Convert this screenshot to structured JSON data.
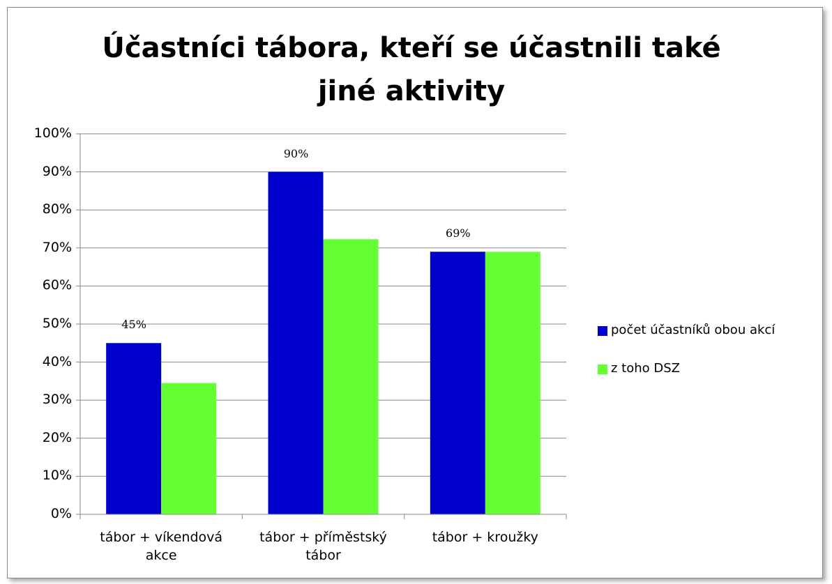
{
  "chart_data": {
    "type": "bar",
    "title": "Účastníci tábora, kteří se účastnili také jiné aktivity",
    "categories": [
      "tábor + víkendová akce",
      "tábor + příměstský tábor",
      "tábor + kroužky"
    ],
    "series": [
      {
        "name": "počet účastníků obou akcí",
        "color": "#0000cc",
        "values": [
          45,
          90,
          69
        ],
        "value_labels": [
          "45%",
          "90%",
          "69%"
        ]
      },
      {
        "name": "z toho DSZ",
        "color": "#66ff33",
        "values": [
          34.5,
          72.3,
          69
        ]
      }
    ],
    "ylim": [
      0,
      100
    ],
    "yticks": [
      {
        "value": 0,
        "label": "0%"
      },
      {
        "value": 10,
        "label": "10%"
      },
      {
        "value": 20,
        "label": "20%"
      },
      {
        "value": 30,
        "label": "30%"
      },
      {
        "value": 40,
        "label": "40%"
      },
      {
        "value": 50,
        "label": "50%"
      },
      {
        "value": 60,
        "label": "60%"
      },
      {
        "value": 70,
        "label": "70%"
      },
      {
        "value": 80,
        "label": "80%"
      },
      {
        "value": 90,
        "label": "90%"
      },
      {
        "value": 100,
        "label": "100%"
      }
    ],
    "grid": true,
    "legend": "right"
  }
}
